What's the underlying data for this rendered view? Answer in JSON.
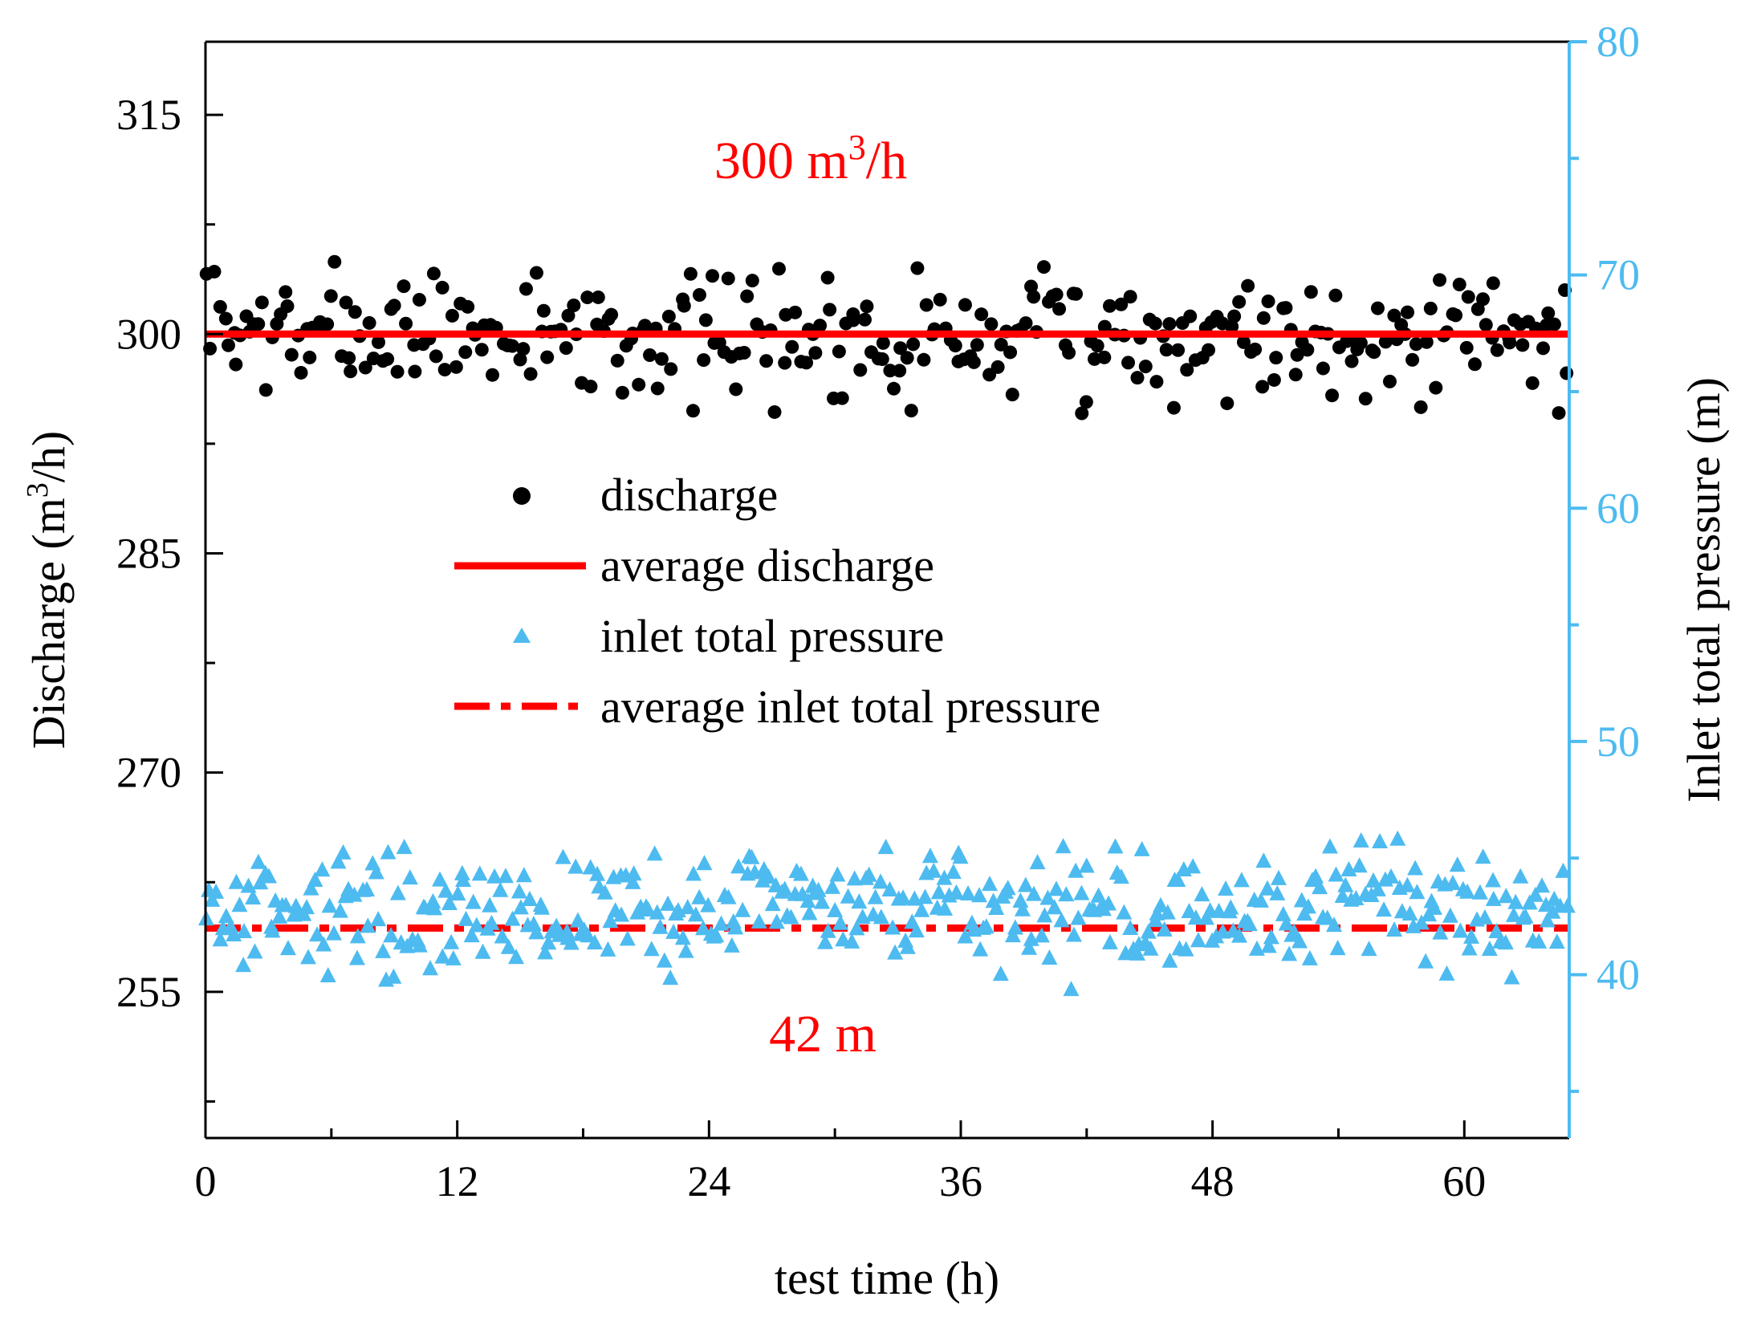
{
  "chart_data": {
    "type": "scatter",
    "xlabel": "test time (h)",
    "ylabel_left": {
      "text": "Discharge (m",
      "sup": "3",
      "suffix": "/h)"
    },
    "ylabel_right": "Inlet total pressure (m)",
    "xlim": [
      0,
      65
    ],
    "ylim_left": [
      245,
      320
    ],
    "ylim_right": [
      33,
      80
    ],
    "x_ticks": [
      0,
      12,
      24,
      36,
      48,
      60
    ],
    "x_tick_labels": [
      "0",
      "12",
      "24",
      "36",
      "48",
      "60"
    ],
    "y_left_ticks": [
      255,
      270,
      285,
      300,
      315
    ],
    "y_left_tick_labels": [
      "255",
      "270",
      "285",
      "300",
      "315"
    ],
    "y_right_ticks": [
      40,
      50,
      60,
      70,
      80
    ],
    "y_right_tick_labels": [
      "40",
      "50",
      "60",
      "70",
      "80"
    ],
    "grid": false,
    "legend_position": "center",
    "series": [
      {
        "name": "discharge",
        "kind": "scatter-circle",
        "axis": "left",
        "color": "#000000",
        "mean": 300,
        "spread": 3.2,
        "count": 320,
        "seed": 7
      },
      {
        "name": "average discharge",
        "kind": "line-solid",
        "axis": "left",
        "color": "#ff0000",
        "value": 300
      },
      {
        "name": "inlet total pressure",
        "kind": "scatter-triangle",
        "axis": "right",
        "color": "#4dbbf0",
        "mean": 42.8,
        "spread": 1.9,
        "count": 430,
        "seed": 13
      },
      {
        "name": "average inlet total pressure",
        "kind": "line-dashdot",
        "axis": "right",
        "color": "#ff0000",
        "value": 42
      }
    ],
    "annotations": [
      {
        "id": "discharge",
        "text": "300 m",
        "sup": "3",
        "suffix": "/h",
        "color": "#ff0000"
      },
      {
        "id": "pressure",
        "text": "42 m",
        "color": "#ff0000"
      }
    ],
    "colors": {
      "axis_left": "#000000",
      "axis_right": "#4dbbf0",
      "highlight": "#ff0000"
    }
  }
}
